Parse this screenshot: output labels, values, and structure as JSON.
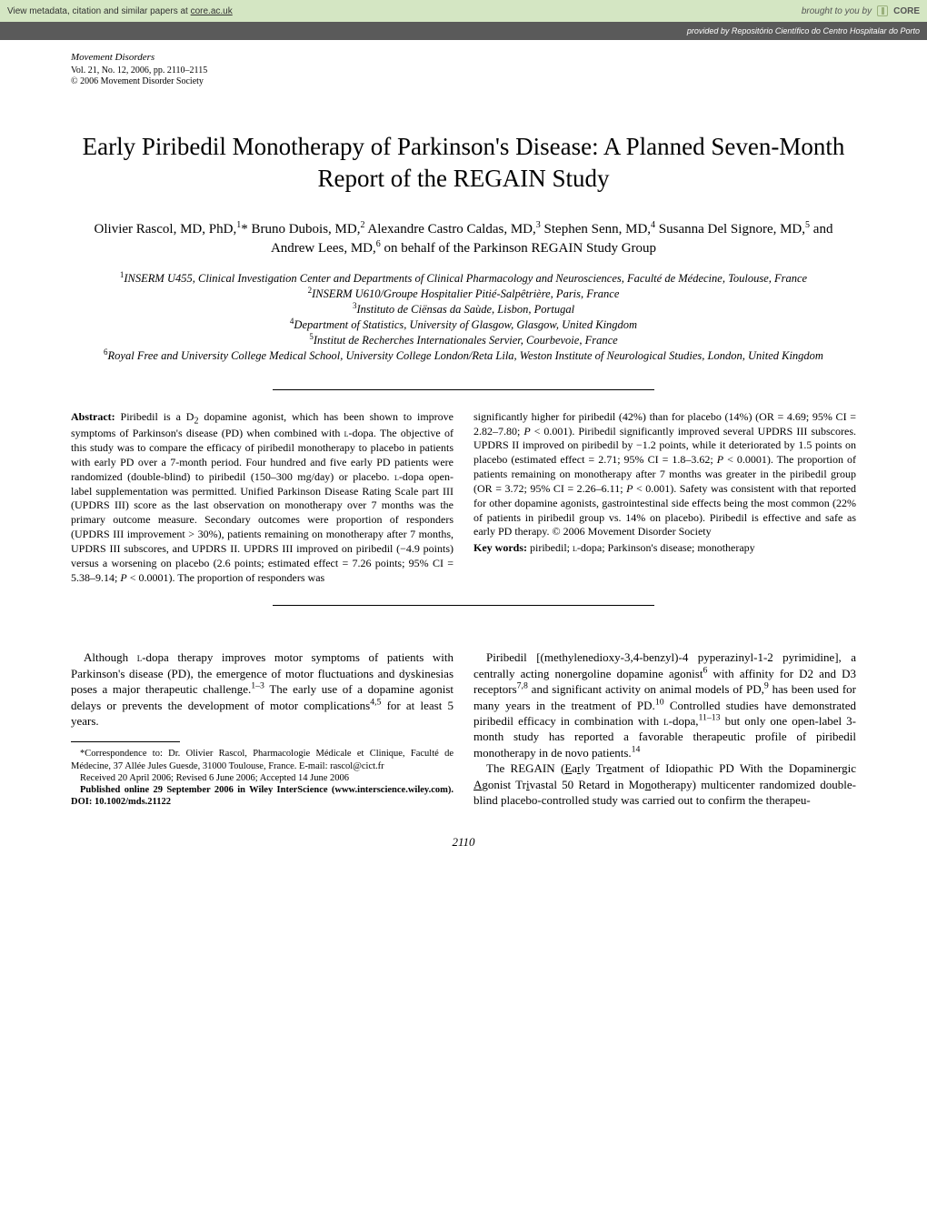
{
  "banner": {
    "left_text": "View metadata, citation and similar papers at ",
    "left_link": "core.ac.uk",
    "brought": "brought to you by",
    "core": "CORE",
    "provided": "provided by Repositório Científico do Centro Hospitalar do Porto"
  },
  "journal": {
    "name": "Movement Disorders",
    "vol": "Vol. 21, No. 12, 2006, pp. 2110–2115",
    "copyright": "© 2006 Movement Disorder Society"
  },
  "title": "Early Piribedil Monotherapy of Parkinson's Disease: A Planned Seven-Month Report of the REGAIN Study",
  "authors_html": "Olivier Rascol, MD, PhD,<sup>1</sup>* Bruno Dubois, MD,<sup>2</sup> Alexandre Castro Caldas, MD,<sup>3</sup> Stephen Senn, MD,<sup>4</sup> Susanna Del Signore, MD,<sup>5</sup> and Andrew Lees, MD,<sup>6</sup> on behalf of the Parkinson REGAIN Study Group",
  "affils": [
    "<sup>1</sup>INSERM U455, Clinical Investigation Center and Departments of Clinical Pharmacology and Neurosciences, Faculté de Médecine, Toulouse, France",
    "<sup>2</sup>INSERM U610/Groupe Hospitalier Pitié-Salpêtrière, Paris, France",
    "<sup>3</sup>Instituto de Ciënsas da Saùde, Lisbon, Portugal",
    "<sup>4</sup>Department of Statistics, University of Glasgow, Glasgow, United Kingdom",
    "<sup>5</sup>Institut de Recherches Internationales Servier, Courbevoie, France",
    "<sup>6</sup>Royal Free and University College Medical School, University College London/Reta Lila, Weston Institute of Neurological Studies, London, United Kingdom"
  ],
  "abstract": {
    "left": "<span class=\"abs-label\">Abstract:</span> Piribedil is a D<sub>2</sub> dopamine agonist, which has been shown to improve symptoms of Parkinson's disease (PD) when combined with <span class=\"smallcaps\">l</span>-dopa. The objective of this study was to compare the efficacy of piribedil monotherapy to placebo in patients with early PD over a 7-month period. Four hundred and five early PD patients were randomized (double-blind) to piribedil (150–300 mg/day) or placebo. <span class=\"smallcaps\">l</span>-dopa open-label supplementation was permitted. Unified Parkinson Disease Rating Scale part III (UPDRS III) score as the last observation on monotherapy over 7 months was the primary outcome measure. Secondary outcomes were proportion of responders (UPDRS III improvement &gt; 30%), patients remaining on monotherapy after 7 months, UPDRS III subscores, and UPDRS II. UPDRS III improved on piribedil (−4.9 points) versus a worsening on placebo (2.6 points; estimated effect = 7.26 points; 95% CI = 5.38–9.14; <i>P</i> &lt; 0.0001). The proportion of responders was",
    "right": "significantly higher for piribedil (42%) than for placebo (14%) (OR = 4.69; 95% CI = 2.82–7.80; <i>P</i> &lt; 0.001). Piribedil significantly improved several UPDRS III subscores. UPDRS II improved on piribedil by −1.2 points, while it deteriorated by 1.5 points on placebo (estimated effect = 2.71; 95% CI = 1.8–3.62; <i>P</i> &lt; 0.0001). The proportion of patients remaining on monotherapy after 7 months was greater in the piribedil group (OR = 3.72; 95% CI = 2.26–6.11; <i>P</i> &lt; 0.001). Safety was consistent with that reported for other dopamine agonists, gastrointestinal side effects being the most common (22% of patients in piribedil group vs. 14% on placebo). Piribedil is effective and safe as early PD therapy. © 2006 Movement Disorder Society",
    "keywords_label": "Key words:",
    "keywords": "piribedil; <span class=\"smallcaps\">l</span>-dopa; Parkinson's disease; monotherapy"
  },
  "body": {
    "left_p1": "Although <span class=\"smallcaps\">l</span>-dopa therapy improves motor symptoms of patients with Parkinson's disease (PD), the emergence of motor fluctuations and dyskinesias poses a major therapeutic challenge.<sup>1–3</sup> The early use of a dopamine agonist delays or prevents the development of motor complications<sup>4,5</sup> for at least 5 years.",
    "right_p1": "Piribedil [(methylenedioxy-3,4-benzyl)-4 pyperazinyl-1-2 pyrimidine], a centrally acting nonergoline dopamine agonist<sup>6</sup> with affinity for D2 and D3 receptors<sup>7,8</sup> and significant activity on animal models of PD,<sup>9</sup> has been used for many years in the treatment of PD.<sup>10</sup> Controlled studies have demonstrated piribedil efficacy in combination with <span class=\"smallcaps\">l</span>-dopa,<sup>11–13</sup> but only one open-label 3-month study has reported a favorable therapeutic profile of piribedil monotherapy in de novo patients.<sup>14</sup>",
    "right_p2": "The REGAIN (<u>E</u>a<u>r</u>ly Tr<u>e</u>atment of Idiopathic PD With the Dopaminer<u>g</u>ic <u>A</u>gonist Tr<u>i</u>vastal 50 Retard in Mo<u>n</u>otherapy) multicenter randomized double-blind placebo-controlled study was carried out to confirm the therapeu-"
  },
  "footnotes": {
    "f1": "*Correspondence to: Dr. Olivier Rascol, Pharmacologie Médicale et Clinique, Faculté de Médecine, 37 Allée Jules Guesde, 31000 Toulouse, France. E-mail: rascol@cict.fr",
    "f2": "Received 20 April 2006; Revised 6 June 2006; Accepted 14 June 2006",
    "f3": "<b>Published online 29 September 2006 in Wiley InterScience (www.interscience.wiley.com). DOI: 10.1002/mds.21122</b>"
  },
  "page_number": "2110"
}
